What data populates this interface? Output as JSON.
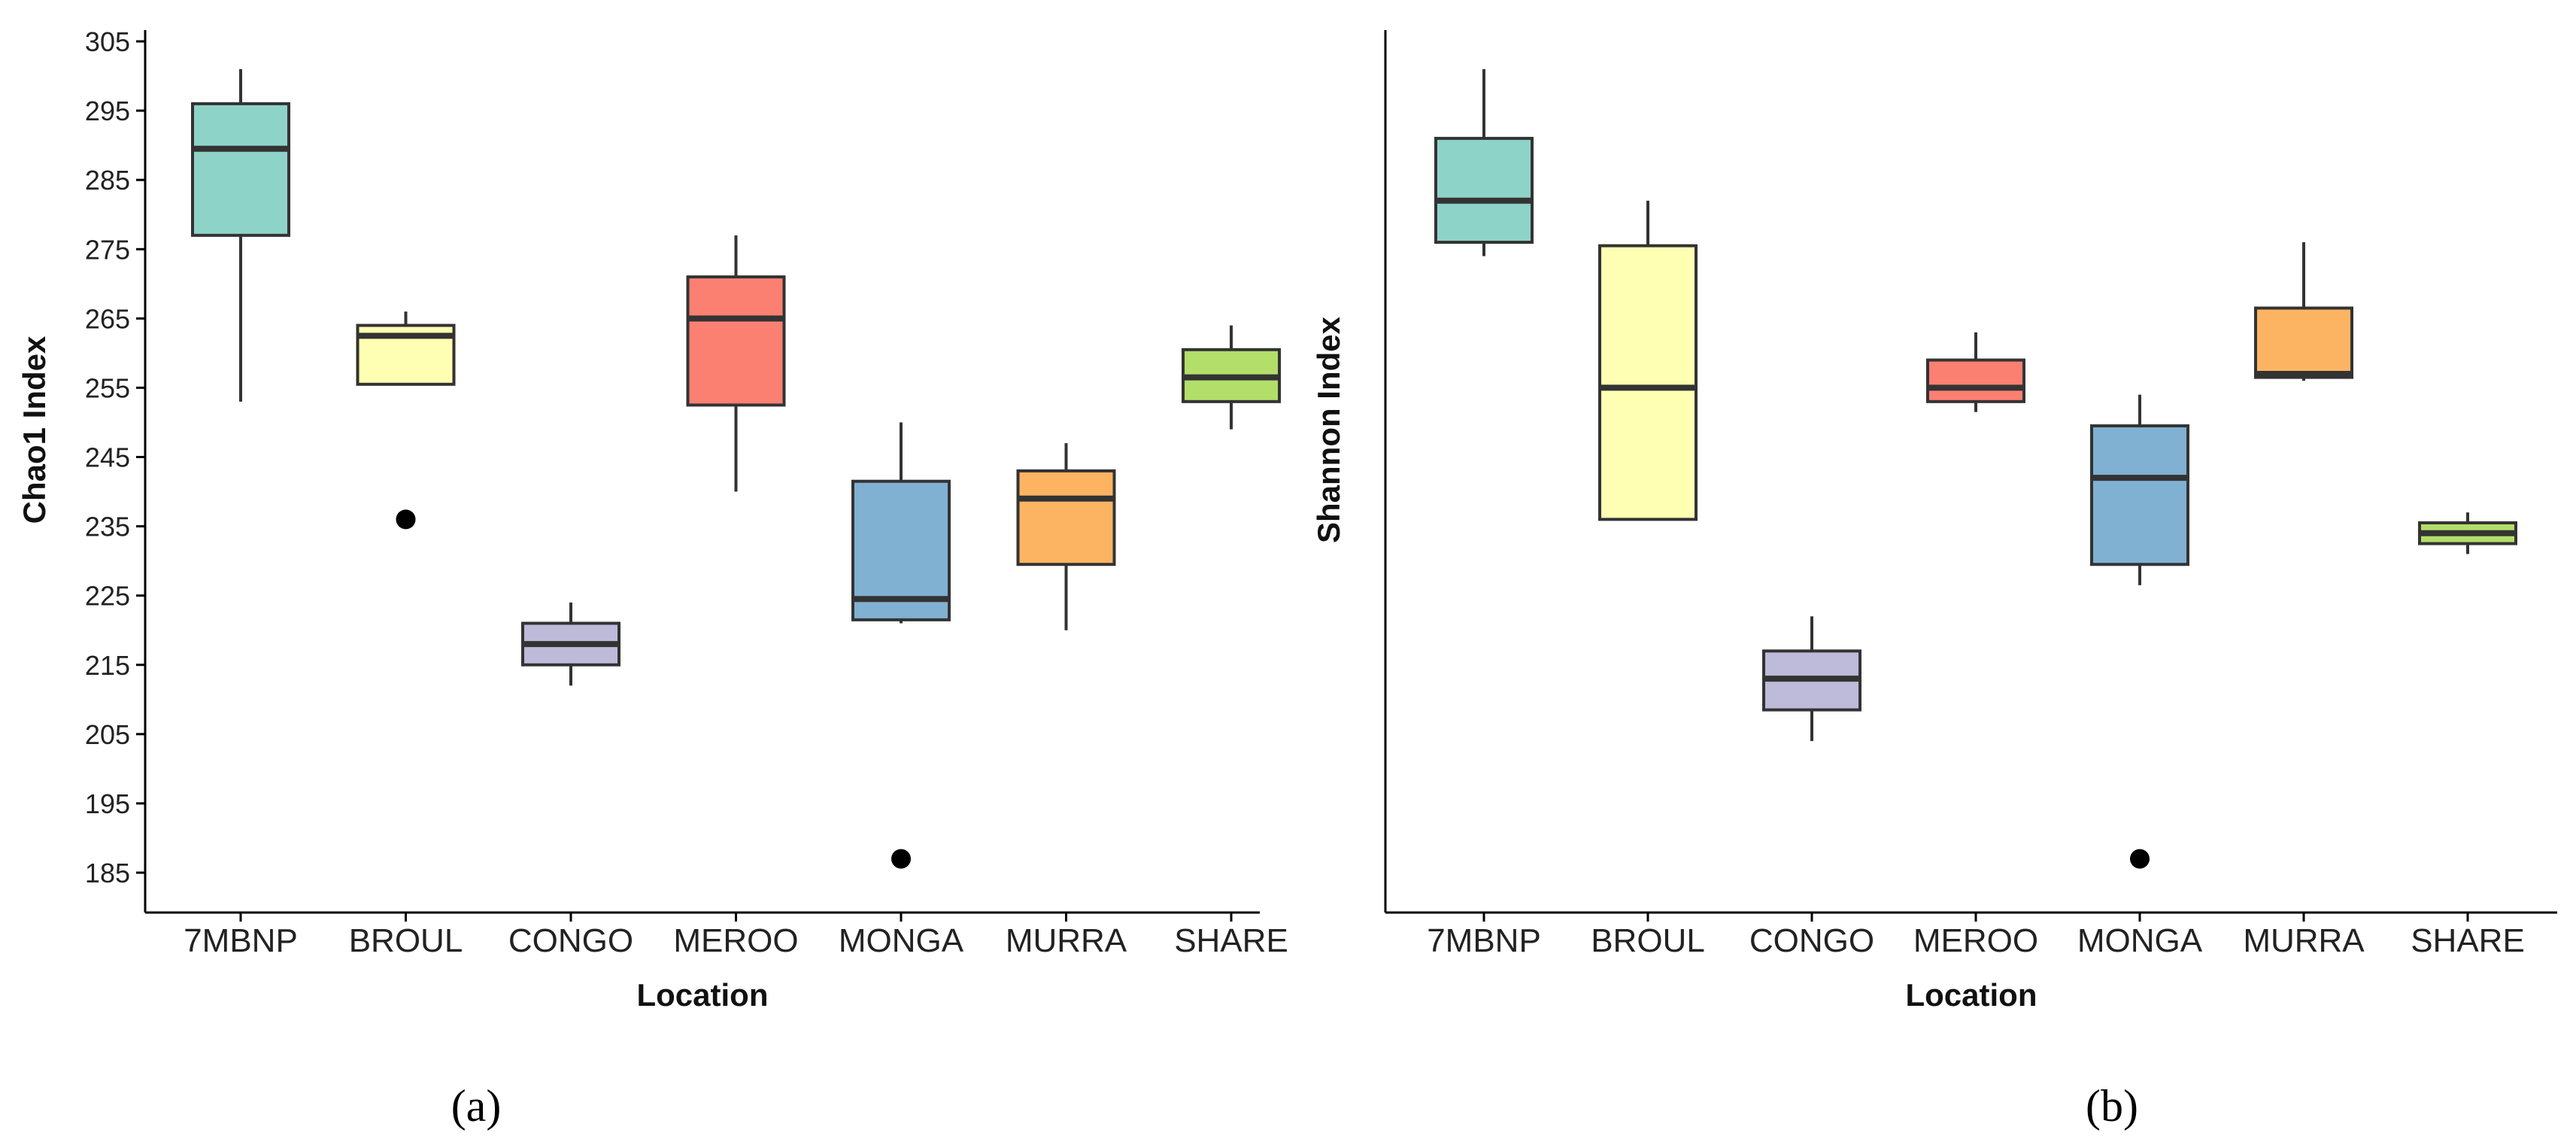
{
  "chart_data": [
    {
      "id": "a",
      "type": "box",
      "panel_label": "(a)",
      "xlabel": "Location",
      "ylabel": "Chao1 Index",
      "ylim": [
        182,
        307
      ],
      "yticks": [
        185,
        195,
        205,
        215,
        225,
        235,
        245,
        255,
        265,
        275,
        285,
        295,
        305
      ],
      "categories": [
        "7MBNP",
        "BROUL",
        "CONGO",
        "MEROO",
        "MONGA",
        "MURRA",
        "SHARE"
      ],
      "colors": [
        "#8dd3c7",
        "#ffffb3",
        "#bebada",
        "#fb8072",
        "#80b1d3",
        "#fdb462",
        "#b3de69"
      ],
      "boxes": [
        {
          "category": "7MBNP",
          "min": 253,
          "q1": 277,
          "median": 289.5,
          "q3": 296,
          "max": 301,
          "outliers": []
        },
        {
          "category": "BROUL",
          "min": 255.5,
          "q1": 255.5,
          "median": 262.5,
          "q3": 264,
          "max": 266,
          "outliers": [
            236
          ]
        },
        {
          "category": "CONGO",
          "min": 212,
          "q1": 215,
          "median": 218,
          "q3": 221,
          "max": 224,
          "outliers": []
        },
        {
          "category": "MEROO",
          "min": 240,
          "q1": 252.5,
          "median": 265,
          "q3": 271,
          "max": 277,
          "outliers": []
        },
        {
          "category": "MONGA",
          "min": 221,
          "q1": 221.5,
          "median": 224.5,
          "q3": 241.5,
          "max": 250,
          "outliers": [
            187
          ]
        },
        {
          "category": "MURRA",
          "min": 220,
          "q1": 229.5,
          "median": 239,
          "q3": 243,
          "max": 247,
          "outliers": []
        },
        {
          "category": "SHARE",
          "min": 249,
          "q1": 253,
          "median": 256.5,
          "q3": 260.5,
          "max": 264,
          "outliers": []
        }
      ]
    },
    {
      "id": "b",
      "type": "box",
      "panel_label": "(b)",
      "xlabel": "Location",
      "ylabel": "Shannon Index",
      "ylim": [
        182,
        307
      ],
      "yticks": [],
      "categories": [
        "7MBNP",
        "BROUL",
        "CONGO",
        "MEROO",
        "MONGA",
        "MURRA",
        "SHARE"
      ],
      "colors": [
        "#8dd3c7",
        "#ffffb3",
        "#bebada",
        "#fb8072",
        "#80b1d3",
        "#fdb462",
        "#b3de69"
      ],
      "boxes": [
        {
          "category": "7MBNP",
          "min": 274,
          "q1": 276,
          "median": 282,
          "q3": 291,
          "max": 301,
          "outliers": []
        },
        {
          "category": "BROUL",
          "min": 236,
          "q1": 236,
          "median": 255,
          "q3": 275.5,
          "max": 282,
          "outliers": []
        },
        {
          "category": "CONGO",
          "min": 204,
          "q1": 208.5,
          "median": 213,
          "q3": 217,
          "max": 222,
          "outliers": []
        },
        {
          "category": "MEROO",
          "min": 251.5,
          "q1": 253,
          "median": 255,
          "q3": 259,
          "max": 263,
          "outliers": []
        },
        {
          "category": "MONGA",
          "min": 226.5,
          "q1": 229.5,
          "median": 242,
          "q3": 249.5,
          "max": 254,
          "outliers": [
            187
          ]
        },
        {
          "category": "MURRA",
          "min": 256,
          "q1": 256.5,
          "median": 257,
          "q3": 266.5,
          "max": 276,
          "outliers": []
        },
        {
          "category": "SHARE",
          "min": 231,
          "q1": 232.5,
          "median": 234,
          "q3": 235.5,
          "max": 237,
          "outliers": []
        }
      ]
    }
  ]
}
